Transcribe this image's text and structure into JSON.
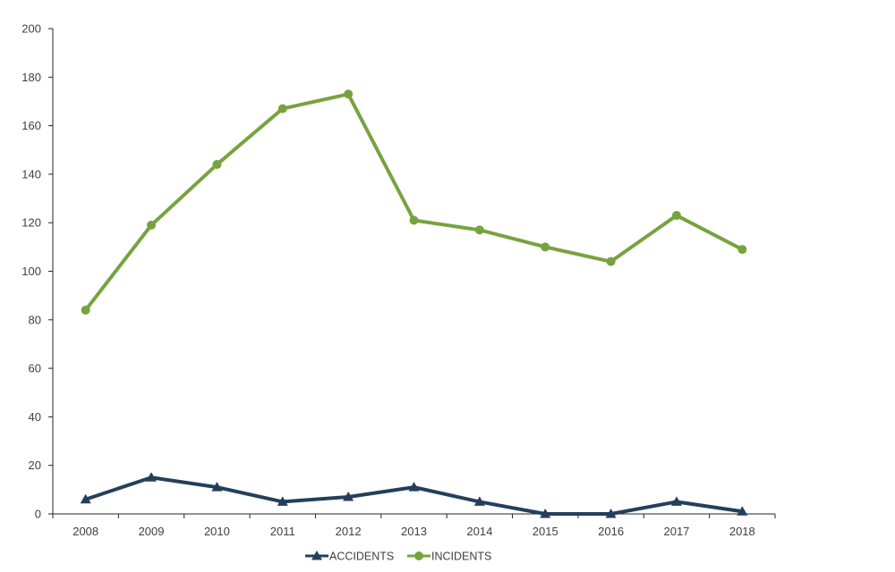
{
  "chart_data": {
    "type": "line",
    "title": "",
    "xlabel": "",
    "ylabel": "",
    "ylim": [
      0,
      200
    ],
    "yticks": [
      0,
      20,
      40,
      60,
      80,
      100,
      120,
      140,
      160,
      180,
      200
    ],
    "categories": [
      "2008",
      "2009",
      "2010",
      "2011",
      "2012",
      "2013",
      "2014",
      "2015",
      "2016",
      "2017",
      "2018"
    ],
    "grid": false,
    "legend_position": "bottom",
    "series": [
      {
        "name": "ACCIDENTS",
        "values": [
          6,
          15,
          11,
          5,
          7,
          11,
          5,
          0,
          0,
          5,
          1
        ],
        "color": "#243f5c",
        "marker": "triangle"
      },
      {
        "name": "INCIDENTS",
        "values": [
          84,
          119,
          144,
          167,
          173,
          121,
          117,
          110,
          104,
          123,
          109
        ],
        "color": "#77a33f",
        "marker": "circle"
      }
    ]
  }
}
